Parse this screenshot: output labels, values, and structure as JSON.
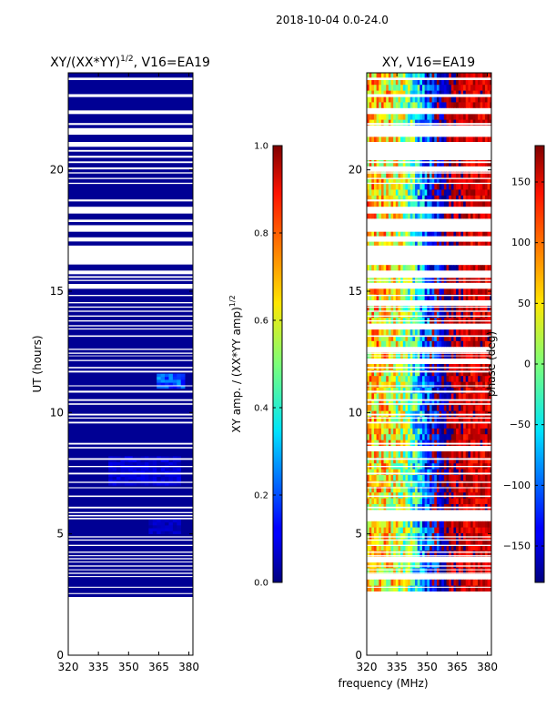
{
  "figure": {
    "suptitle": "2018-10-04 0.0-24.0",
    "xlabel": "frequency (MHz)"
  },
  "chart_data": [
    {
      "type": "heatmap",
      "title_main": "XY/(XX*YY)",
      "title_exp": "1/2",
      "title_suffix": ", V16=EA19",
      "xlabel": "",
      "ylabel": "UT (hours)",
      "xlim": [
        320,
        382
      ],
      "ylim": [
        0,
        24
      ],
      "xticks": [
        320,
        335,
        350,
        365,
        380
      ],
      "yticks": [
        0,
        5,
        10,
        15,
        20
      ],
      "colorbar": {
        "label_main": "XY amp. / (XX*YY amp)",
        "label_exp": "1/2",
        "range": [
          0.0,
          1.0
        ],
        "ticks": [
          "0.0",
          "0.2",
          "0.4",
          "0.6",
          "0.8",
          "1.0"
        ],
        "tick_values": [
          0.0,
          0.2,
          0.4,
          0.6,
          0.8,
          1.0
        ]
      },
      "data_ut_range": [
        2.4,
        24.0
      ],
      "typical_value": 0.02,
      "patches": [
        {
          "ut": [
            11.0,
            11.5
          ],
          "freq": [
            364,
            378
          ],
          "value": 0.2
        },
        {
          "ut": [
            7.0,
            8.2
          ],
          "freq": [
            340,
            375
          ],
          "value": 0.08
        },
        {
          "ut": [
            5.0,
            5.5
          ],
          "freq": [
            360,
            375
          ],
          "value": 0.06
        }
      ]
    },
    {
      "type": "heatmap",
      "title": "XY, V16=EA19",
      "xlabel": "frequency (MHz)",
      "ylabel": "",
      "xlim": [
        320,
        382
      ],
      "ylim": [
        0,
        24
      ],
      "xticks": [
        320,
        335,
        350,
        365,
        380
      ],
      "yticks": [
        0,
        5,
        10,
        15,
        20
      ],
      "colorbar": {
        "label": "phase (deg)",
        "range": [
          -180,
          180
        ],
        "ticks": [
          "150",
          "100",
          "50",
          "0",
          "−50",
          "−100",
          "−150"
        ],
        "tick_values": [
          150,
          100,
          50,
          0,
          -50,
          -100,
          -150
        ]
      },
      "data_ut_range": [
        2.4,
        24.0
      ],
      "phase_profile_freq": [
        320,
        330,
        340,
        346,
        350,
        356,
        362,
        370,
        382
      ],
      "phase_profile_deg": [
        60,
        55,
        10,
        -60,
        -120,
        -150,
        165,
        150,
        150
      ],
      "phase_noise_deg": 70
    }
  ],
  "gaps_ut": [
    [
      23.7,
      23.8
    ],
    [
      23.0,
      23.12
    ],
    [
      22.3,
      22.45
    ],
    [
      21.85,
      21.93
    ],
    [
      21.45,
      21.72
    ],
    [
      20.95,
      21.15
    ],
    [
      20.75,
      20.82
    ],
    [
      20.5,
      20.58
    ],
    [
      20.28,
      20.35
    ],
    [
      20.02,
      20.1
    ],
    [
      19.85,
      19.9
    ],
    [
      19.62,
      19.67
    ],
    [
      19.42,
      19.47
    ],
    [
      18.7,
      18.78
    ],
    [
      18.2,
      18.48
    ],
    [
      17.85,
      17.95
    ],
    [
      17.45,
      17.72
    ],
    [
      17.05,
      17.22
    ],
    [
      16.1,
      16.88
    ],
    [
      15.7,
      15.85
    ],
    [
      15.55,
      15.62
    ],
    [
      15.42,
      15.47
    ],
    [
      15.1,
      15.3
    ],
    [
      14.8,
      14.85
    ],
    [
      14.5,
      14.55
    ],
    [
      14.32,
      14.37
    ],
    [
      14.15,
      14.2
    ],
    [
      13.95,
      14.0
    ],
    [
      13.75,
      13.8
    ],
    [
      13.55,
      13.6
    ],
    [
      13.42,
      13.47
    ],
    [
      13.12,
      13.18
    ],
    [
      12.58,
      12.63
    ],
    [
      12.42,
      12.47
    ],
    [
      12.32,
      12.35
    ],
    [
      12.12,
      12.17
    ],
    [
      11.82,
      11.88
    ],
    [
      11.65,
      11.72
    ],
    [
      11.08,
      11.12
    ],
    [
      10.82,
      10.9
    ],
    [
      10.48,
      10.55
    ],
    [
      10.32,
      10.38
    ],
    [
      9.88,
      9.95
    ],
    [
      9.75,
      9.8
    ],
    [
      9.55,
      9.62
    ],
    [
      8.68,
      8.75
    ],
    [
      8.52,
      8.58
    ],
    [
      8.05,
      8.12
    ],
    [
      7.75,
      7.8
    ],
    [
      7.45,
      7.52
    ],
    [
      7.1,
      7.15
    ],
    [
      6.88,
      6.92
    ],
    [
      6.52,
      6.58
    ],
    [
      6.05,
      6.12
    ],
    [
      5.85,
      5.9
    ],
    [
      5.72,
      5.78
    ],
    [
      5.6,
      5.66
    ],
    [
      4.85,
      4.9
    ],
    [
      4.72,
      4.77
    ],
    [
      4.5,
      4.55
    ],
    [
      4.22,
      4.27
    ],
    [
      4.08,
      4.12
    ],
    [
      3.95,
      4.0
    ],
    [
      3.82,
      3.86
    ],
    [
      3.65,
      3.7
    ],
    [
      3.5,
      3.54
    ],
    [
      3.35,
      3.4
    ],
    [
      3.22,
      3.26
    ],
    [
      2.78,
      2.82
    ],
    [
      2.52,
      2.56
    ]
  ]
}
